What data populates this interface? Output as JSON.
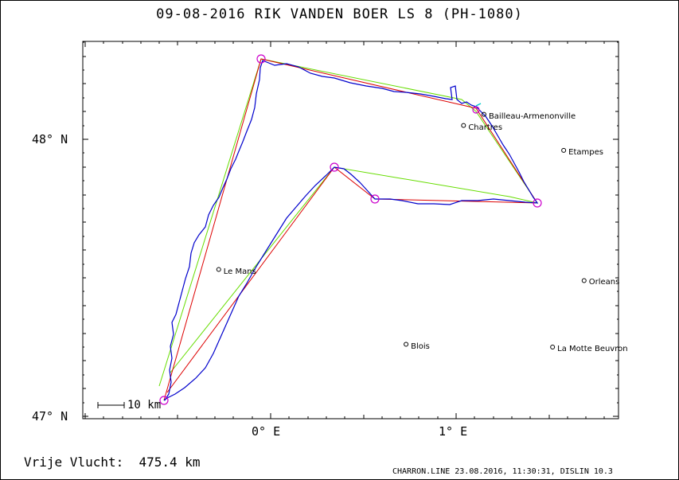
{
  "title": "09-08-2016   RIK VANDEN BOER   LS 8 (PH-1080)",
  "axes": {
    "y_labels": [
      "48° N",
      "47° N"
    ],
    "x_labels": [
      "0° E",
      "1° E"
    ]
  },
  "cities": [
    {
      "name": "Bailleau-Armenonville",
      "lon": 1.15,
      "lat": 48.09
    },
    {
      "name": "Chartres",
      "lon": 1.04,
      "lat": 48.05
    },
    {
      "name": "Etampes",
      "lon": 1.58,
      "lat": 47.96
    },
    {
      "name": "Le Mans",
      "lon": -0.28,
      "lat": 47.53
    },
    {
      "name": "Orleans",
      "lon": 1.69,
      "lat": 47.49
    },
    {
      "name": "Blois",
      "lon": 0.73,
      "lat": 47.26
    },
    {
      "name": "La Motte Beuvron",
      "lon": 1.52,
      "lat": 47.25
    }
  ],
  "scale_label": "10 km",
  "footer": {
    "distance": "Vrije Vlucht:  475.4 km",
    "credits": "CHARRON.LINE 23.08.2016, 11:30:31, DISLIN 10.3"
  },
  "colors": {
    "track": "#0000cc",
    "task": "#dd0000",
    "optimized": "#66dd00",
    "turnpoint": "#cc00cc"
  }
}
